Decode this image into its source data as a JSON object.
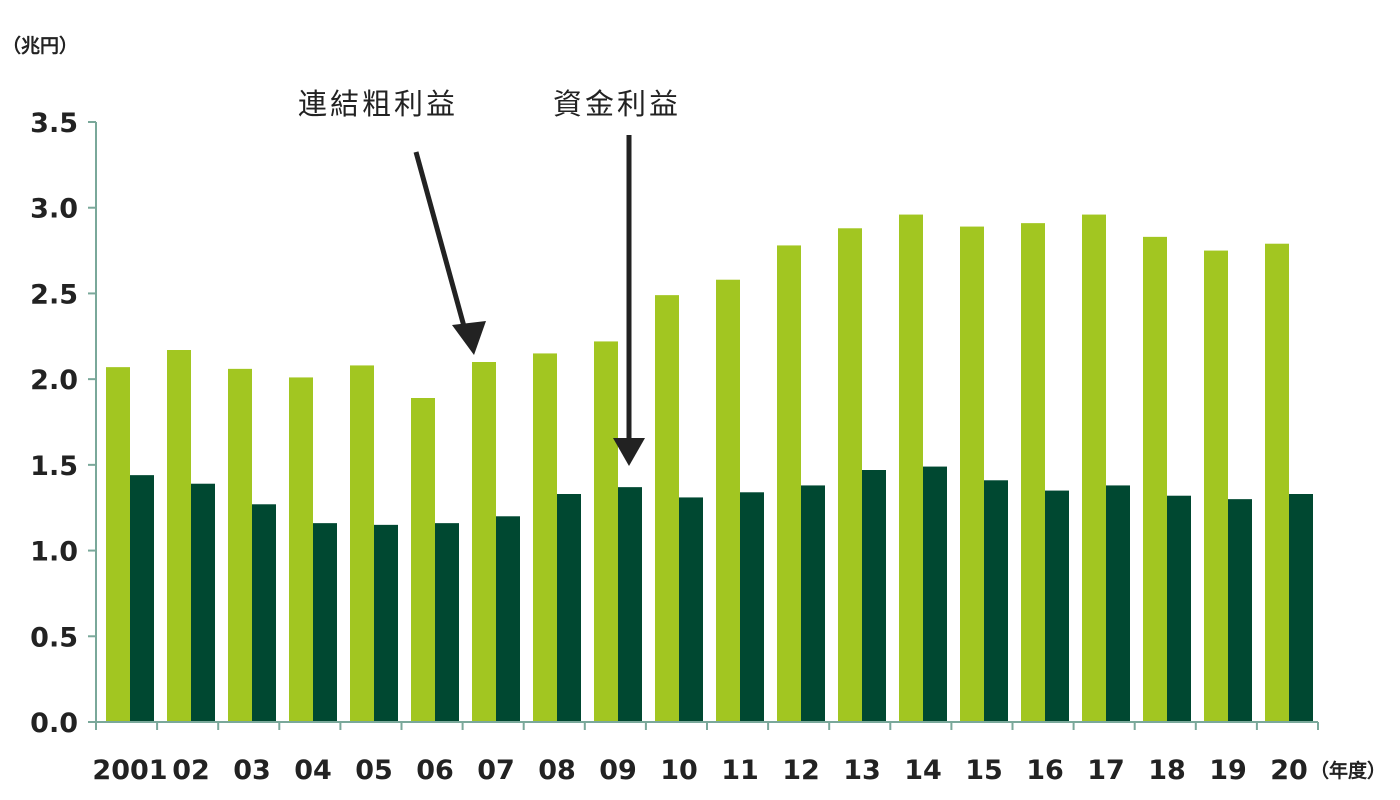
{
  "chart_data": {
    "type": "bar",
    "y_unit": "（兆円）",
    "x_unit": "（年度）",
    "categories": [
      "2001",
      "02",
      "03",
      "04",
      "05",
      "06",
      "07",
      "08",
      "09",
      "10",
      "11",
      "12",
      "13",
      "14",
      "15",
      "16",
      "17",
      "18",
      "19",
      "20"
    ],
    "series": [
      {
        "name": "連結粗利益",
        "color": "#a2c621",
        "values": [
          2.07,
          2.17,
          2.06,
          2.01,
          2.08,
          1.89,
          2.1,
          2.15,
          2.22,
          2.49,
          2.58,
          2.78,
          2.88,
          2.96,
          2.89,
          2.91,
          2.96,
          2.83,
          2.75,
          2.79
        ]
      },
      {
        "name": "資金利益",
        "color": "#004831",
        "values": [
          1.44,
          1.39,
          1.27,
          1.16,
          1.15,
          1.16,
          1.2,
          1.33,
          1.37,
          1.31,
          1.34,
          1.38,
          1.47,
          1.49,
          1.41,
          1.35,
          1.38,
          1.32,
          1.3,
          1.33
        ]
      }
    ],
    "ylim": [
      0,
      3.5
    ],
    "yticks": [
      "0.0",
      "0.5",
      "1.0",
      "1.5",
      "2.0",
      "2.5",
      "3.0",
      "3.5"
    ],
    "annotations": [
      {
        "text": "連結粗利益",
        "points_to": "07 連結粗利益"
      },
      {
        "text": "資金利益",
        "points_to": "09 資金利益"
      }
    ],
    "grid": false,
    "legend": "none"
  }
}
